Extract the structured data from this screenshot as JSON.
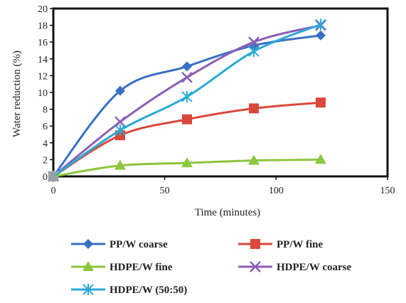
{
  "chart_data": {
    "type": "line",
    "title": "",
    "xlabel": "Time (minutes)",
    "ylabel": "Water reduction (%)",
    "xlim": [
      0,
      150
    ],
    "ylim": [
      0,
      20
    ],
    "x_ticks": [
      0,
      50,
      100,
      150
    ],
    "y_ticks": [
      0,
      2,
      4,
      6,
      8,
      10,
      12,
      14,
      16,
      18,
      20
    ],
    "grid": false,
    "legend_position": "bottom",
    "series": [
      {
        "name": "PP/W coarse",
        "color": "#3a6fc4",
        "marker": "diamond",
        "x": [
          0,
          30,
          60,
          90,
          120
        ],
        "y": [
          0,
          10.2,
          13.1,
          15.6,
          16.8
        ]
      },
      {
        "name": "PP/W fine",
        "color": "#d9483b",
        "marker": "square",
        "x": [
          0,
          30,
          60,
          90,
          120
        ],
        "y": [
          0,
          4.9,
          6.8,
          8.1,
          8.8
        ]
      },
      {
        "name": "HDPE/W fine",
        "color": "#8dc63f",
        "marker": "triangle",
        "x": [
          0,
          30,
          60,
          90,
          120
        ],
        "y": [
          0,
          1.3,
          1.6,
          1.9,
          2.0
        ]
      },
      {
        "name": "HDPE/W coarse",
        "color": "#8b5fb5",
        "marker": "x",
        "x": [
          0,
          30,
          60,
          90,
          120
        ],
        "y": [
          0,
          6.5,
          11.8,
          16.0,
          18.0
        ]
      },
      {
        "name": "HDPE/W (50:50)",
        "color": "#2aa9d6",
        "marker": "star",
        "x": [
          0,
          30,
          60,
          90,
          120
        ],
        "y": [
          0,
          5.5,
          9.5,
          14.9,
          18.1
        ]
      }
    ]
  }
}
